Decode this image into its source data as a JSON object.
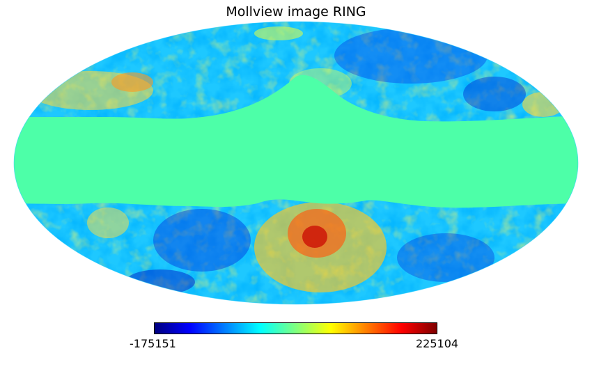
{
  "title": "Mollview image RING",
  "projection": "mollweide",
  "colormap": "jet",
  "colorbar": {
    "min_label": "-175151",
    "max_label": "225104",
    "stops": [
      "#00007f",
      "#0000ff",
      "#007fff",
      "#00ffff",
      "#7fff7f",
      "#ffff00",
      "#ff7f00",
      "#ff0000",
      "#7f0000"
    ]
  },
  "masked_band_color": "#4dffa8"
}
